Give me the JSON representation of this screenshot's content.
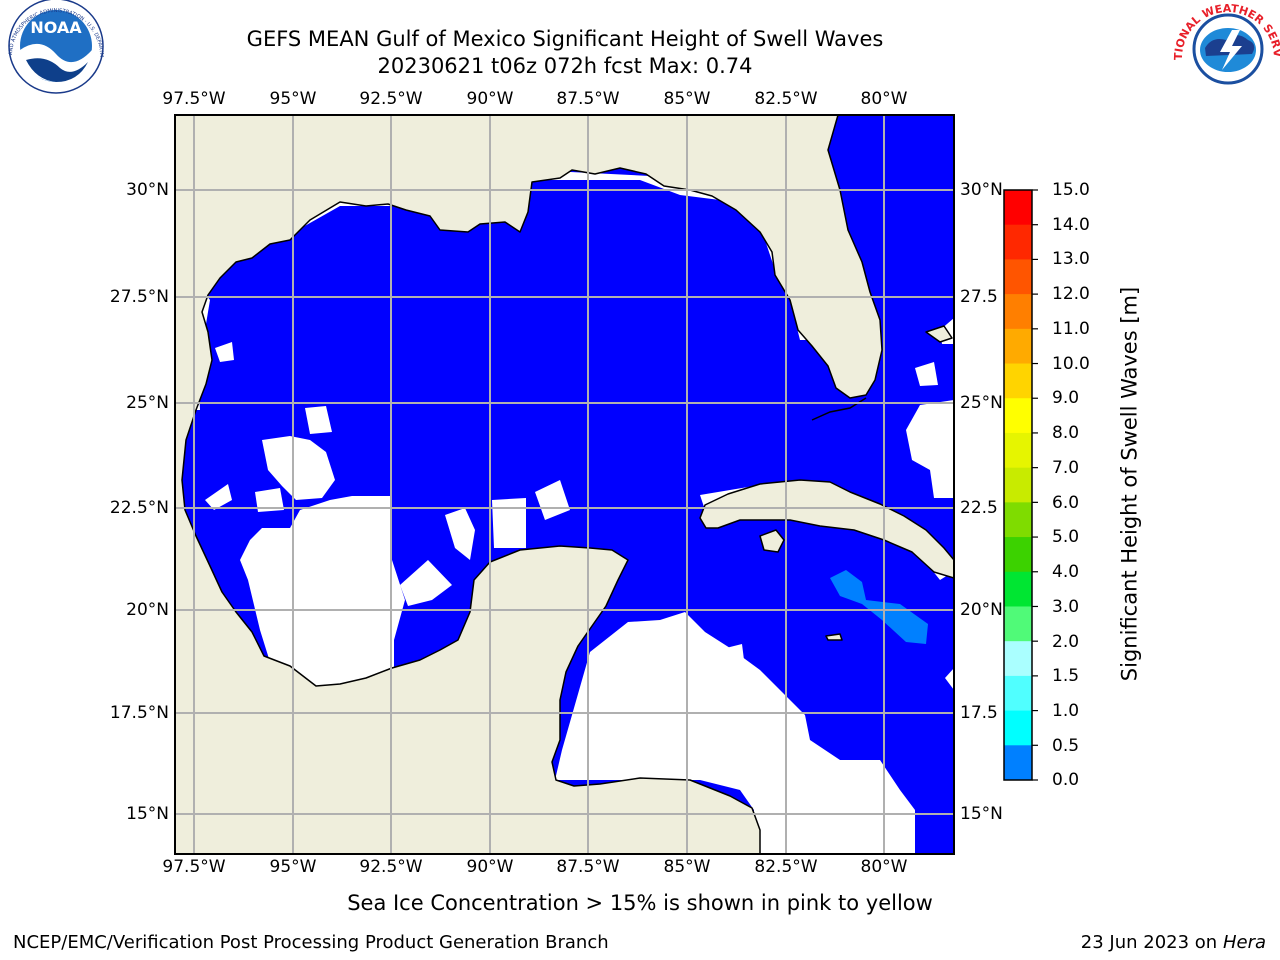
{
  "header": {
    "title_line1": "GEFS MEAN Gulf of Mexico Significant Height of Swell Waves",
    "title_line2": "20230621 t06z 072h fcst   Max: 0.74"
  },
  "logos": {
    "left": "NOAA",
    "left_ring_text": "NATIONAL OCEANIC AND ATMOSPHERIC ADMINISTRATION · U.S. DEPARTMENT OF COMMERCE",
    "right_ring_text": "NATIONAL WEATHER SERVICE"
  },
  "map": {
    "lon_ticks": [
      "97.5°W",
      "95°W",
      "92.5°W",
      "90°W",
      "87.5°W",
      "85°W",
      "82.5°W",
      "80°W"
    ],
    "lat_ticks": [
      "30°N",
      "27.5°N",
      "25°N",
      "22.5°N",
      "20°N",
      "17.5°N",
      "15°N"
    ],
    "lat_ticks_right": [
      "30°N",
      "27.5",
      "25°N",
      "22.5",
      "20°N",
      "17.5",
      "15°N"
    ],
    "colors": {
      "land": "#efeedc",
      "ocean_low": "#0000ff",
      "ocean_0_5": "#0080ff",
      "grid": "#b0b0b0"
    }
  },
  "colorbar": {
    "label": "Significant Height of Swell Waves [m]",
    "ticks": [
      "15.0",
      "14.0",
      "13.0",
      "12.0",
      "11.0",
      "10.0",
      "9.0",
      "8.0",
      "7.0",
      "6.0",
      "5.0",
      "4.0",
      "3.0",
      "2.0",
      "1.5",
      "1.0",
      "0.5",
      "0.0"
    ],
    "colors": [
      "#ff0000",
      "#ff2800",
      "#ff5500",
      "#ff7f00",
      "#ffaa00",
      "#ffd400",
      "#ffff00",
      "#e6f500",
      "#c8eb00",
      "#7fdc00",
      "#3cd200",
      "#00e632",
      "#50fa78",
      "#aaffff",
      "#50ffff",
      "#00ffff",
      "#0080ff",
      "#0000ff"
    ]
  },
  "footer": {
    "caption": "Sea Ice Concentration > 15% is shown in pink to yellow",
    "credit": "NCEP/EMC/Verification Post Processing Product Generation Branch",
    "date": "23 Jun 2023 on",
    "machine": "Hera"
  }
}
